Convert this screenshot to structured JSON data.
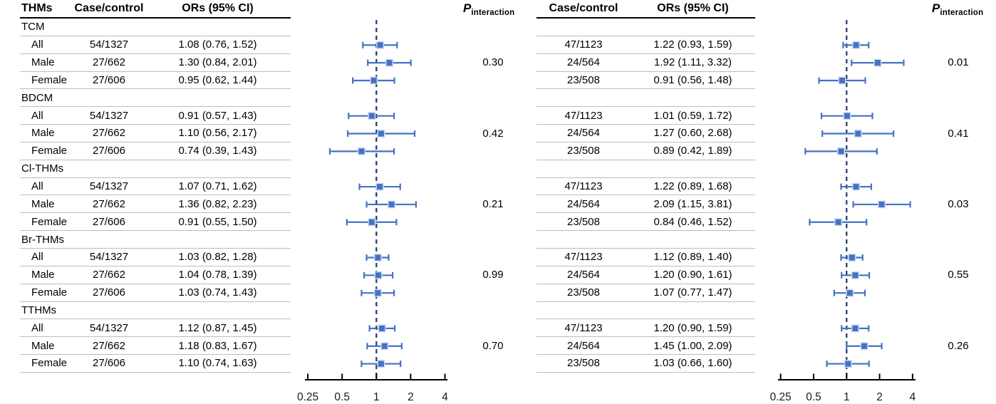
{
  "figure": {
    "colors": {
      "marker_blue": "#4472C4",
      "marker_halo": "#CBD8F0",
      "reference_dash_navy": "#1F3864",
      "row_line_gray": "#BDBDBD",
      "axis_black": "#000000"
    }
  },
  "left_panel": {
    "col_headers": {
      "thms": "THMs",
      "case_control": "Case/control",
      "ors": "ORs (95% CI)"
    },
    "p_header": {
      "symbol": "P",
      "subscript": "interaction"
    }
  },
  "right_panel": {
    "col_headers": {
      "case_control": "Case/control",
      "ors": "ORs (95% CI)"
    },
    "p_header": {
      "symbol": "P",
      "subscript": "interaction"
    }
  },
  "chart_data": [
    {
      "type": "forest",
      "panel": "left",
      "axis": {
        "scale": "log2",
        "xlim": [
          0.25,
          4
        ],
        "tick_values": [
          0.25,
          0.5,
          1,
          2,
          4
        ],
        "tick_labels": [
          "0.25",
          "0.5",
          "1",
          "2",
          "4"
        ],
        "reference_line": 1
      },
      "groups": [
        {
          "name": "TCM",
          "p_interaction": "0.30",
          "rows": [
            {
              "label": "All",
              "case_control": "54/1327",
              "or_text": "1.08 (0.76, 1.52)",
              "or": 1.08,
              "lo": 0.76,
              "hi": 1.52
            },
            {
              "label": "Male",
              "case_control": "27/662",
              "or_text": "1.30 (0.84, 2.01)",
              "or": 1.3,
              "lo": 0.84,
              "hi": 2.01
            },
            {
              "label": "Female",
              "case_control": "27/606",
              "or_text": "0.95 (0.62, 1.44)",
              "or": 0.95,
              "lo": 0.62,
              "hi": 1.44
            }
          ]
        },
        {
          "name": "BDCM",
          "p_interaction": "0.42",
          "rows": [
            {
              "label": "All",
              "case_control": "54/1327",
              "or_text": "0.91 (0.57, 1.43)",
              "or": 0.91,
              "lo": 0.57,
              "hi": 1.43
            },
            {
              "label": "Male",
              "case_control": "27/662",
              "or_text": "1.10 (0.56, 2.17)",
              "or": 1.1,
              "lo": 0.56,
              "hi": 2.17
            },
            {
              "label": "Female",
              "case_control": "27/606",
              "or_text": "0.74 (0.39, 1.43)",
              "or": 0.74,
              "lo": 0.39,
              "hi": 1.43
            }
          ]
        },
        {
          "name": "Cl-THMs",
          "p_interaction": "0.21",
          "rows": [
            {
              "label": "All",
              "case_control": "54/1327",
              "or_text": "1.07 (0.71, 1.62)",
              "or": 1.07,
              "lo": 0.71,
              "hi": 1.62
            },
            {
              "label": "Male",
              "case_control": "27/662",
              "or_text": "1.36 (0.82, 2.23)",
              "or": 1.36,
              "lo": 0.82,
              "hi": 2.23
            },
            {
              "label": "Female",
              "case_control": "27/606",
              "or_text": "0.91 (0.55, 1.50)",
              "or": 0.91,
              "lo": 0.55,
              "hi": 1.5
            }
          ]
        },
        {
          "name": "Br-THMs",
          "p_interaction": "0.99",
          "rows": [
            {
              "label": "All",
              "case_control": "54/1327",
              "or_text": "1.03 (0.82, 1.28)",
              "or": 1.03,
              "lo": 0.82,
              "hi": 1.28
            },
            {
              "label": "Male",
              "case_control": "27/662",
              "or_text": "1.04 (0.78, 1.39)",
              "or": 1.04,
              "lo": 0.78,
              "hi": 1.39
            },
            {
              "label": "Female",
              "case_control": "27/606",
              "or_text": "1.03 (0.74, 1.43)",
              "or": 1.03,
              "lo": 0.74,
              "hi": 1.43
            }
          ]
        },
        {
          "name": "TTHMs",
          "p_interaction": "0.70",
          "rows": [
            {
              "label": "All",
              "case_control": "54/1327",
              "or_text": "1.12 (0.87, 1.45)",
              "or": 1.12,
              "lo": 0.87,
              "hi": 1.45
            },
            {
              "label": "Male",
              "case_control": "27/662",
              "or_text": "1.18 (0.83, 1.67)",
              "or": 1.18,
              "lo": 0.83,
              "hi": 1.67
            },
            {
              "label": "Female",
              "case_control": "27/606",
              "or_text": "1.10 (0.74, 1.63)",
              "or": 1.1,
              "lo": 0.74,
              "hi": 1.63
            }
          ]
        }
      ]
    },
    {
      "type": "forest",
      "panel": "right",
      "axis": {
        "scale": "log2",
        "xlim": [
          0.25,
          4
        ],
        "tick_values": [
          0.25,
          0.5,
          1,
          2,
          4
        ],
        "tick_labels": [
          "0.25",
          "0.5",
          "1",
          "2",
          "4"
        ],
        "reference_line": 1
      },
      "groups": [
        {
          "name": "TCM",
          "p_interaction": "0.01",
          "rows": [
            {
              "label": "All",
              "case_control": "47/1123",
              "or_text": "1.22 (0.93, 1.59)",
              "or": 1.22,
              "lo": 0.93,
              "hi": 1.59
            },
            {
              "label": "Male",
              "case_control": "24/564",
              "or_text": "1.92 (1.11, 3.32)",
              "or": 1.92,
              "lo": 1.11,
              "hi": 3.32
            },
            {
              "label": "Female",
              "case_control": "23/508",
              "or_text": "0.91 (0.56, 1.48)",
              "or": 0.91,
              "lo": 0.56,
              "hi": 1.48
            }
          ]
        },
        {
          "name": "BDCM",
          "p_interaction": "0.41",
          "rows": [
            {
              "label": "All",
              "case_control": "47/1123",
              "or_text": "1.01 (0.59, 1.72)",
              "or": 1.01,
              "lo": 0.59,
              "hi": 1.72
            },
            {
              "label": "Male",
              "case_control": "24/564",
              "or_text": "1.27 (0.60, 2.68)",
              "or": 1.27,
              "lo": 0.6,
              "hi": 2.68
            },
            {
              "label": "Female",
              "case_control": "23/508",
              "or_text": "0.89 (0.42, 1.89)",
              "or": 0.89,
              "lo": 0.42,
              "hi": 1.89
            }
          ]
        },
        {
          "name": "Cl-THMs",
          "p_interaction": "0.03",
          "rows": [
            {
              "label": "All",
              "case_control": "47/1123",
              "or_text": "1.22 (0.89, 1.68)",
              "or": 1.22,
              "lo": 0.89,
              "hi": 1.68
            },
            {
              "label": "Male",
              "case_control": "24/564",
              "or_text": "2.09 (1.15, 3.81)",
              "or": 2.09,
              "lo": 1.15,
              "hi": 3.81
            },
            {
              "label": "Female",
              "case_control": "23/508",
              "or_text": "0.84 (0.46, 1.52)",
              "or": 0.84,
              "lo": 0.46,
              "hi": 1.52
            }
          ]
        },
        {
          "name": "Br-THMs",
          "p_interaction": "0.55",
          "rows": [
            {
              "label": "All",
              "case_control": "47/1123",
              "or_text": "1.12 (0.89, 1.40)",
              "or": 1.12,
              "lo": 0.89,
              "hi": 1.4
            },
            {
              "label": "Male",
              "case_control": "24/564",
              "or_text": "1.20 (0.90, 1.61)",
              "or": 1.2,
              "lo": 0.9,
              "hi": 1.61
            },
            {
              "label": "Female",
              "case_control": "23/508",
              "or_text": "1.07 (0.77, 1.47)",
              "or": 1.07,
              "lo": 0.77,
              "hi": 1.47
            }
          ]
        },
        {
          "name": "TTHMs",
          "p_interaction": "0.26",
          "rows": [
            {
              "label": "All",
              "case_control": "47/1123",
              "or_text": "1.20 (0.90, 1.59)",
              "or": 1.2,
              "lo": 0.9,
              "hi": 1.59
            },
            {
              "label": "Male",
              "case_control": "24/564",
              "or_text": "1.45 (1.00, 2.09)",
              "or": 1.45,
              "lo": 1.0,
              "hi": 2.09
            },
            {
              "label": "Female",
              "case_control": "23/508",
              "or_text": "1.03 (0.66, 1.60)",
              "or": 1.03,
              "lo": 0.66,
              "hi": 1.6
            }
          ]
        }
      ]
    }
  ]
}
